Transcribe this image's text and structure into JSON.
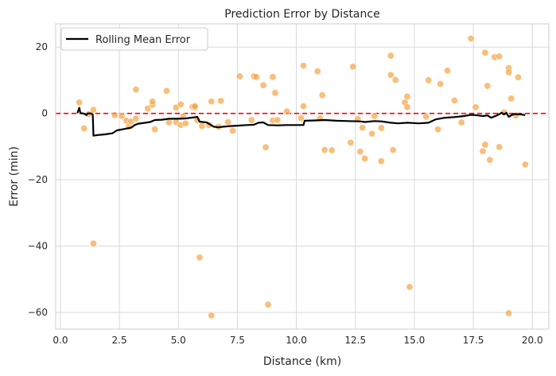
{
  "chart_data": {
    "type": "scatter",
    "title": "Prediction Error by Distance",
    "xlabel": "Distance (km)",
    "ylabel": "Error (min)",
    "xlim": [
      -0.2,
      20.7
    ],
    "ylim": [
      -65,
      27
    ],
    "xticks": [
      0.0,
      2.5,
      5.0,
      7.5,
      10.0,
      12.5,
      15.0,
      17.5,
      20.0
    ],
    "xtick_labels": [
      "0.0",
      "2.5",
      "5.0",
      "7.5",
      "10.0",
      "12.5",
      "15.0",
      "17.5",
      "20.0"
    ],
    "yticks": [
      20,
      0,
      -20,
      -40,
      -60
    ],
    "ytick_labels": [
      "20",
      "0",
      "−20",
      "−40",
      "−60"
    ],
    "grid": true,
    "legend": {
      "position": "top-left",
      "label": "Rolling Mean Error"
    },
    "reference_line": {
      "y": 0,
      "style": "dashed",
      "color": "#ff0000"
    },
    "colors": {
      "points": "#f5a442",
      "rolling_mean": "#000000",
      "zero_line": "#ff0000",
      "grid": "#d9d9d9"
    },
    "points": [
      [
        0.8,
        3.3
      ],
      [
        1.0,
        -4.5
      ],
      [
        1.2,
        -0.2
      ],
      [
        1.4,
        1.1
      ],
      [
        1.4,
        -39.2
      ],
      [
        2.3,
        -0.5
      ],
      [
        2.6,
        -0.8
      ],
      [
        2.8,
        -2.2
      ],
      [
        2.9,
        -4.0
      ],
      [
        3.0,
        -2.4
      ],
      [
        3.2,
        7.2
      ],
      [
        3.2,
        -1.5
      ],
      [
        3.7,
        1.5
      ],
      [
        3.9,
        2.6
      ],
      [
        3.9,
        3.6
      ],
      [
        4.0,
        -4.8
      ],
      [
        4.5,
        6.8
      ],
      [
        4.6,
        -2.7
      ],
      [
        4.9,
        1.8
      ],
      [
        4.9,
        -2.6
      ],
      [
        5.1,
        -3.5
      ],
      [
        5.1,
        2.7
      ],
      [
        5.2,
        -0.9
      ],
      [
        5.3,
        -3.0
      ],
      [
        5.6,
        2.0
      ],
      [
        5.7,
        1.8
      ],
      [
        5.7,
        2.2
      ],
      [
        5.8,
        -2.0
      ],
      [
        5.9,
        -43.4
      ],
      [
        6.0,
        -3.8
      ],
      [
        6.3,
        -3.5
      ],
      [
        6.4,
        3.6
      ],
      [
        6.4,
        -60.9
      ],
      [
        6.7,
        -4.0
      ],
      [
        6.8,
        3.8
      ],
      [
        7.1,
        -2.6
      ],
      [
        7.3,
        -5.2
      ],
      [
        7.6,
        11.2
      ],
      [
        8.1,
        -2.0
      ],
      [
        8.2,
        11.2
      ],
      [
        8.3,
        11.0
      ],
      [
        8.6,
        8.5
      ],
      [
        8.7,
        -10.2
      ],
      [
        8.8,
        -57.6
      ],
      [
        9.0,
        -2.1
      ],
      [
        9.0,
        11.0
      ],
      [
        9.1,
        6.2
      ],
      [
        9.2,
        -2.0
      ],
      [
        9.6,
        0.6
      ],
      [
        10.2,
        -1.4
      ],
      [
        10.3,
        14.4
      ],
      [
        10.3,
        2.2
      ],
      [
        10.9,
        12.7
      ],
      [
        11.0,
        -1.5
      ],
      [
        11.1,
        5.5
      ],
      [
        11.2,
        -11.0
      ],
      [
        11.5,
        -11.1
      ],
      [
        12.3,
        -8.8
      ],
      [
        12.4,
        14.1
      ],
      [
        12.6,
        -1.7
      ],
      [
        12.7,
        -11.5
      ],
      [
        12.8,
        -4.3
      ],
      [
        12.9,
        -13.6
      ],
      [
        13.2,
        -6.1
      ],
      [
        13.3,
        -0.8
      ],
      [
        13.6,
        -4.4
      ],
      [
        13.6,
        -14.4
      ],
      [
        14.0,
        11.6
      ],
      [
        14.0,
        17.4
      ],
      [
        14.1,
        -11.0
      ],
      [
        14.2,
        10.1
      ],
      [
        14.6,
        3.3
      ],
      [
        14.7,
        5.1
      ],
      [
        14.7,
        1.9
      ],
      [
        14.8,
        -52.3
      ],
      [
        15.5,
        -1.0
      ],
      [
        15.6,
        10.0
      ],
      [
        16.0,
        -4.8
      ],
      [
        16.1,
        8.9
      ],
      [
        16.4,
        12.9
      ],
      [
        16.7,
        3.9
      ],
      [
        17.0,
        -2.7
      ],
      [
        17.4,
        22.6
      ],
      [
        17.6,
        1.9
      ],
      [
        17.9,
        -11.4
      ],
      [
        18.0,
        18.3
      ],
      [
        18.0,
        -9.4
      ],
      [
        18.1,
        8.3
      ],
      [
        18.2,
        -14.0
      ],
      [
        18.4,
        17.0
      ],
      [
        18.6,
        17.2
      ],
      [
        18.6,
        -10.1
      ],
      [
        18.8,
        0.3
      ],
      [
        19.0,
        -60.2
      ],
      [
        19.0,
        13.7
      ],
      [
        19.0,
        12.4
      ],
      [
        19.1,
        4.5
      ],
      [
        19.3,
        -0.6
      ],
      [
        19.4,
        10.9
      ],
      [
        19.7,
        -15.4
      ]
    ],
    "rolling_mean": [
      [
        0.72,
        0.1
      ],
      [
        0.8,
        1.7
      ],
      [
        0.85,
        0.1
      ],
      [
        0.95,
        0.0
      ],
      [
        1.05,
        -0.2
      ],
      [
        1.1,
        -0.5
      ],
      [
        1.15,
        0.0
      ],
      [
        1.3,
        0.0
      ],
      [
        1.37,
        -0.3
      ],
      [
        1.4,
        -6.7
      ],
      [
        1.6,
        -6.5
      ],
      [
        1.9,
        -6.3
      ],
      [
        2.2,
        -6.0
      ],
      [
        2.4,
        -5.1
      ],
      [
        2.7,
        -4.7
      ],
      [
        3.0,
        -4.3
      ],
      [
        3.15,
        -3.5
      ],
      [
        3.3,
        -3.1
      ],
      [
        3.6,
        -2.8
      ],
      [
        3.8,
        -2.6
      ],
      [
        4.0,
        -2.0
      ],
      [
        4.3,
        -1.9
      ],
      [
        4.6,
        -1.6
      ],
      [
        5.0,
        -1.6
      ],
      [
        5.3,
        -1.5
      ],
      [
        5.65,
        -1.2
      ],
      [
        5.8,
        -1.0
      ],
      [
        5.9,
        -2.5
      ],
      [
        6.2,
        -2.7
      ],
      [
        6.5,
        -4.0
      ],
      [
        6.7,
        -4.2
      ],
      [
        6.9,
        -4.0
      ],
      [
        7.2,
        -3.8
      ],
      [
        7.5,
        -3.7
      ],
      [
        7.9,
        -3.5
      ],
      [
        8.2,
        -3.4
      ],
      [
        8.4,
        -2.8
      ],
      [
        8.6,
        -2.7
      ],
      [
        8.8,
        -3.5
      ],
      [
        9.2,
        -3.6
      ],
      [
        9.6,
        -3.5
      ],
      [
        10.0,
        -3.5
      ],
      [
        10.3,
        -3.5
      ],
      [
        10.35,
        -2.2
      ],
      [
        10.8,
        -2.1
      ],
      [
        11.2,
        -2.0
      ],
      [
        11.7,
        -2.2
      ],
      [
        12.2,
        -2.3
      ],
      [
        12.7,
        -2.4
      ],
      [
        12.9,
        -2.6
      ],
      [
        13.3,
        -2.3
      ],
      [
        13.6,
        -2.4
      ],
      [
        14.0,
        -2.8
      ],
      [
        14.3,
        -3.0
      ],
      [
        14.7,
        -2.8
      ],
      [
        15.2,
        -3.0
      ],
      [
        15.6,
        -2.8
      ],
      [
        15.9,
        -1.8
      ],
      [
        16.3,
        -1.3
      ],
      [
        16.7,
        -1.1
      ],
      [
        17.1,
        -0.8
      ],
      [
        17.4,
        -0.4
      ],
      [
        17.7,
        -0.6
      ],
      [
        17.9,
        -0.8
      ],
      [
        18.1,
        -0.6
      ],
      [
        18.25,
        -1.3
      ],
      [
        18.5,
        -0.6
      ],
      [
        18.7,
        0.2
      ],
      [
        18.8,
        -0.3
      ],
      [
        18.9,
        0.2
      ],
      [
        19.0,
        -1.0
      ],
      [
        19.2,
        -0.2
      ],
      [
        19.5,
        -0.3
      ],
      [
        19.7,
        -0.5
      ]
    ]
  }
}
